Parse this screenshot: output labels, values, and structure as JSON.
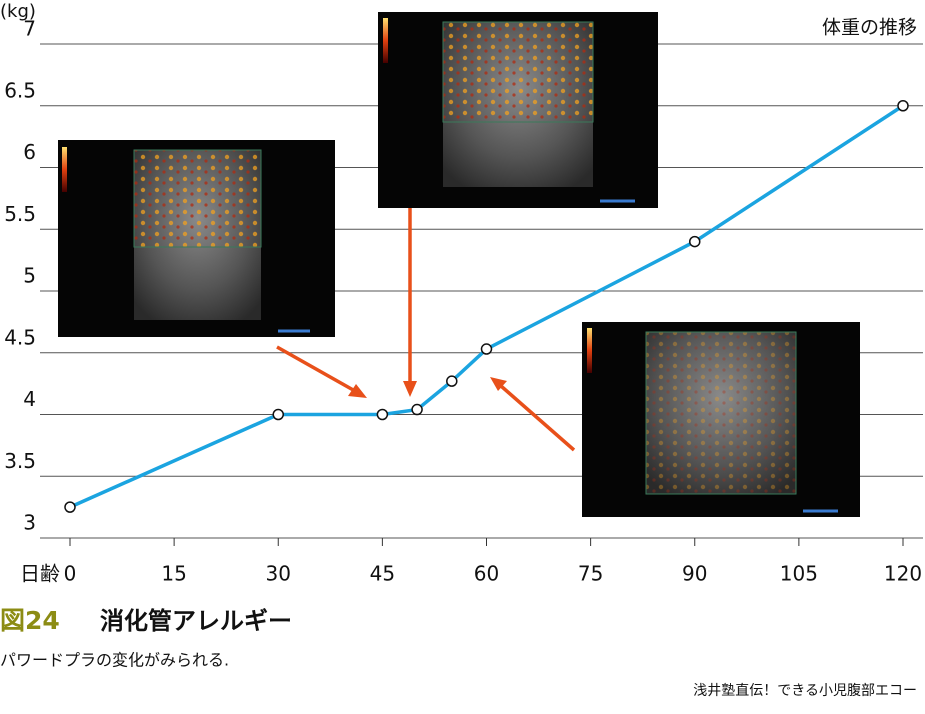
{
  "chart_data": {
    "type": "line",
    "title": "体重の推移",
    "y_unit": "(kg)",
    "x_label": "日齢",
    "x": [
      0,
      30,
      45,
      50,
      55,
      60,
      90,
      120
    ],
    "series": [
      {
        "name": "体重",
        "color": "#1ba4e0",
        "values": [
          3.25,
          4.0,
          4.0,
          4.04,
          4.27,
          4.53,
          5.4,
          6.5
        ]
      }
    ],
    "xlim": [
      0,
      120
    ],
    "xticks": [
      0,
      15,
      30,
      45,
      60,
      75,
      90,
      105,
      120
    ],
    "ylim": [
      3,
      7
    ],
    "yticks": [
      3,
      3.5,
      4,
      4.5,
      5,
      5.5,
      6,
      6.5,
      7
    ],
    "grid": true
  },
  "caption": {
    "figure": "図24",
    "title": "消化管アレルギー",
    "text": "パワードプラの変化がみられる.",
    "source": "浅井塾直伝！できる小児腹部エコー"
  }
}
